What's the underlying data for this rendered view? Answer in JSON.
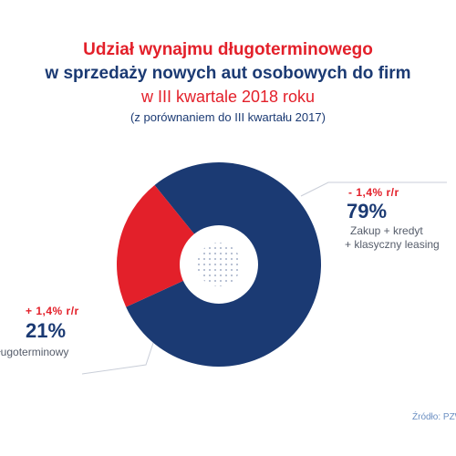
{
  "header": {
    "title_line1": "Udział wynajmu długoterminowego",
    "title_line2": "w sprzedaży nowych aut osobowych do firm",
    "title_line3": "w III kwartale 2018 roku",
    "title_line4": "(z porównaniem do III kwartału 2017)"
  },
  "colors": {
    "red": "#e3202a",
    "navy": "#1b3a73",
    "hole": "#ffffff"
  },
  "labels": {
    "right": {
      "delta": "- 1,4% r/r",
      "pct": "79%",
      "cat1": "Zakup + kredyt",
      "cat2": "+ klasyczny leasing"
    },
    "left": {
      "delta": "+ 1,4% r/r",
      "pct": "21%",
      "cat": "ługoterminowy"
    }
  },
  "source": "Źródło: PZW",
  "chart_data": {
    "type": "pie",
    "title": "Udział wynajmu długoterminowego w sprzedaży nowych aut osobowych do firm w III kwartale 2018 roku",
    "slices": [
      {
        "label": "Zakup + kredyt + klasyczny leasing",
        "value": 79,
        "change": "- 1,4% r/r",
        "color": "#1b3a73"
      },
      {
        "label": "ługoterminowy",
        "value": 21,
        "change": "+ 1,4% r/r",
        "color": "#e3202a"
      }
    ],
    "donut": true
  }
}
